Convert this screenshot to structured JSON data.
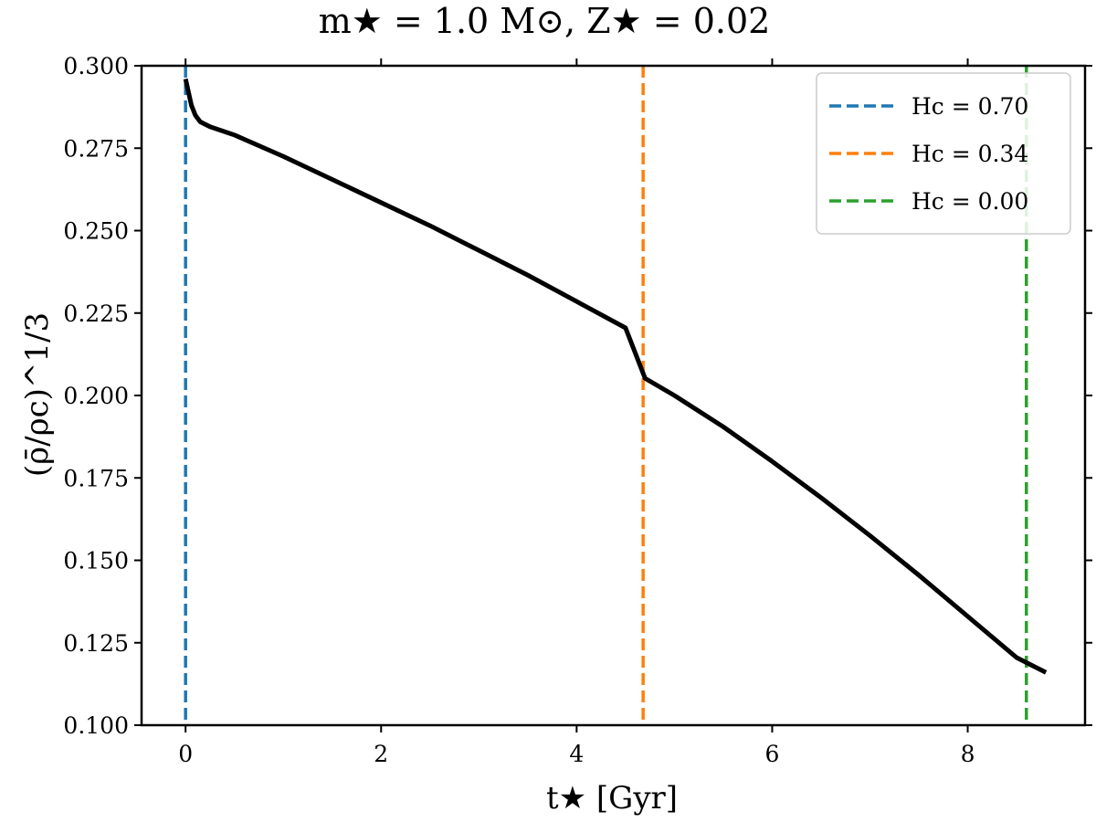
{
  "chart_data": {
    "type": "line",
    "title": "m★ = 1.0 M⊙, Z★ = 0.02",
    "xlabel": "t★ [Gyr]",
    "ylabel": "(ρ̄/ρc)^1/3",
    "xlim": [
      -0.45,
      9.2
    ],
    "ylim": [
      0.1,
      0.3
    ],
    "xticks": [
      0,
      2,
      4,
      6,
      8
    ],
    "xtick_labels": [
      "0",
      "2",
      "4",
      "6",
      "8"
    ],
    "yticks": [
      0.1,
      0.125,
      0.15,
      0.175,
      0.2,
      0.225,
      0.25,
      0.275,
      0.3
    ],
    "ytick_labels": [
      "0.100",
      "0.125",
      "0.150",
      "0.175",
      "0.200",
      "0.225",
      "0.250",
      "0.275",
      "0.300"
    ],
    "grid": false,
    "legend_position": "top-right",
    "series": [
      {
        "color": "#000000",
        "x": [
          0.0,
          0.03,
          0.06,
          0.1,
          0.15,
          0.25,
          0.5,
          1.0,
          1.5,
          2.0,
          2.5,
          3.0,
          3.5,
          4.0,
          4.5,
          4.7,
          5.0,
          5.5,
          6.0,
          6.5,
          7.0,
          7.5,
          8.0,
          8.5,
          8.8
        ],
        "y": [
          0.296,
          0.292,
          0.288,
          0.285,
          0.283,
          0.2815,
          0.279,
          0.2725,
          0.2655,
          0.2585,
          0.2515,
          0.244,
          0.2365,
          0.2285,
          0.2205,
          0.2052,
          0.2,
          0.1905,
          0.18,
          0.169,
          0.1575,
          0.1455,
          0.133,
          0.1205,
          0.116
        ]
      }
    ],
    "vlines": [
      {
        "label": "Hc = 0.70",
        "x": 0.0,
        "color": "#1f77b4"
      },
      {
        "label": "Hc = 0.34",
        "x": 4.68,
        "color": "#ff7f0e"
      },
      {
        "label": "Hc = 0.00",
        "x": 8.6,
        "color": "#2ca02c"
      }
    ]
  }
}
